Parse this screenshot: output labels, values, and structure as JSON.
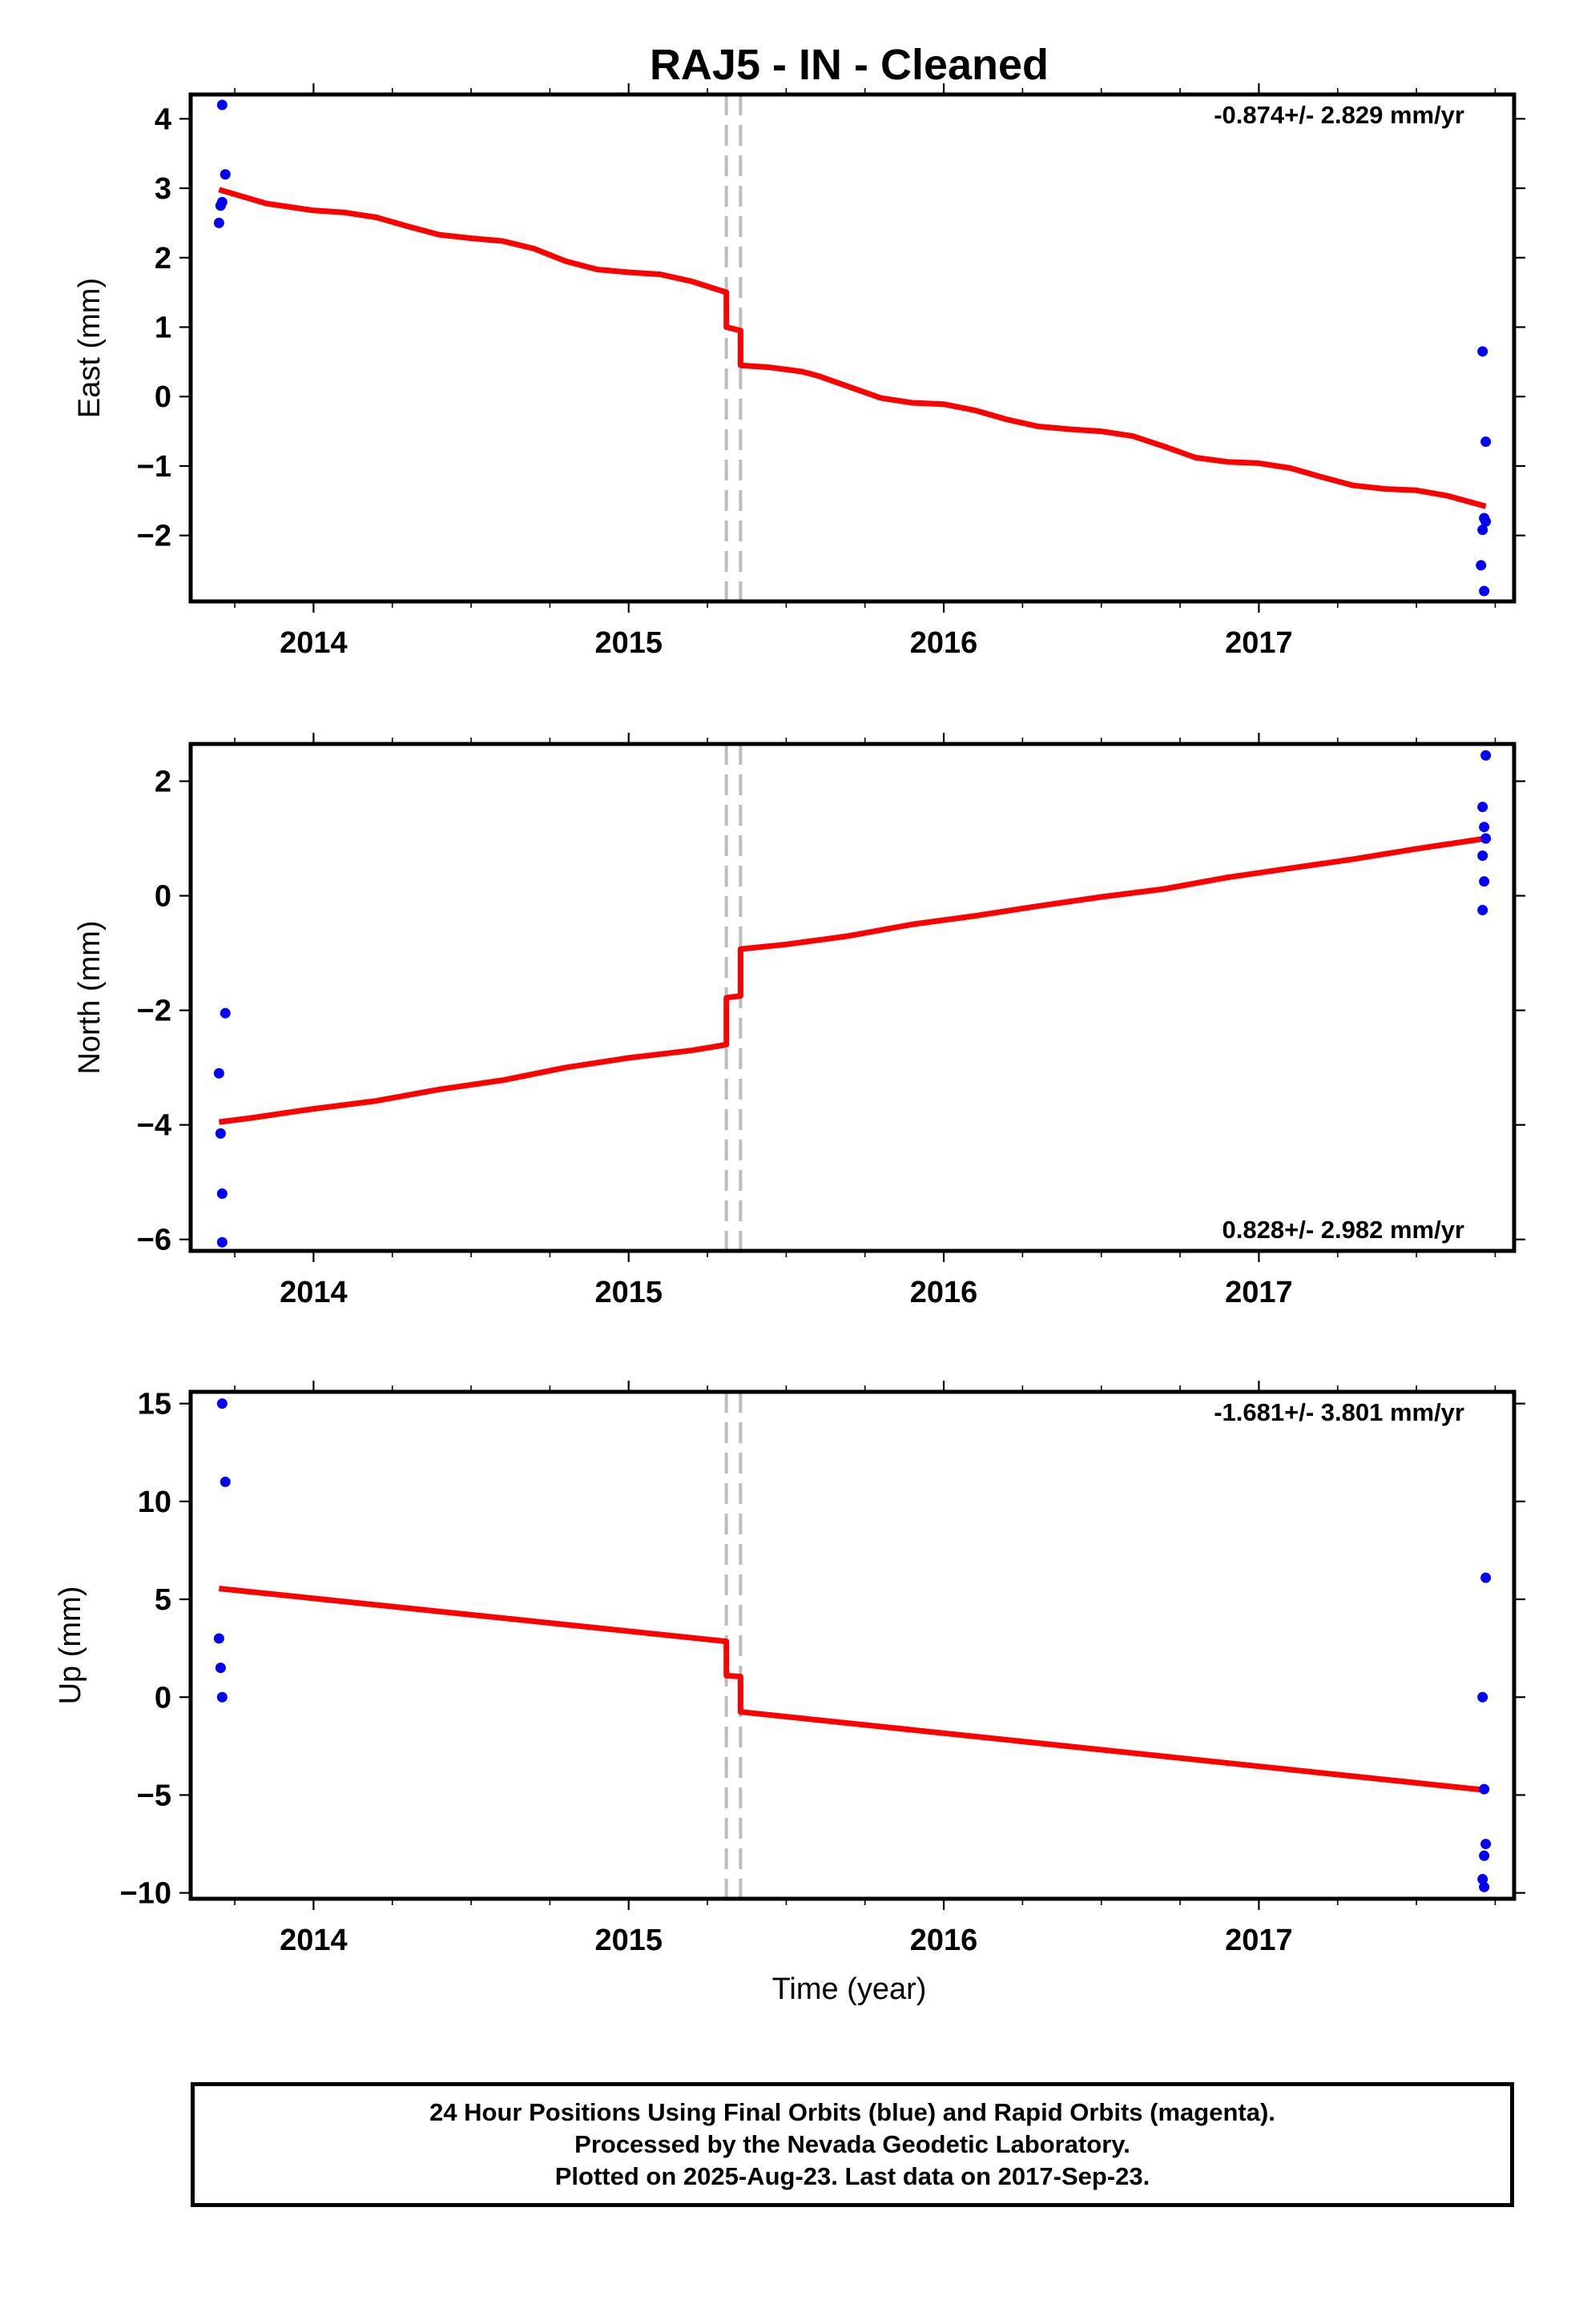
{
  "title": "RAJ5  - IN - Cleaned",
  "xlabel": "Time (year)",
  "footer": {
    "line1": "24 Hour Positions Using Final Orbits (blue) and Rapid Orbits (magenta).",
    "line2": "Processed by the Nevada Geodetic Laboratory.",
    "line3": "Plotted on 2025-Aug-23. Last data on 2017-Sep-23."
  },
  "colors": {
    "fit": "#ff0000",
    "final_orbits": "#0000ff",
    "break_lines": "#bdbdbd"
  },
  "chart_data": [
    {
      "type": "scatter",
      "name": "east",
      "ylabel": "East (mm)",
      "rate_text": "-0.874+/- 2.829 mm/yr",
      "rate_position": "top-right",
      "xlim": [
        2013.61,
        2017.81
      ],
      "ylim": [
        -2.95,
        4.35
      ],
      "yticks": [
        -2,
        -1,
        0,
        1,
        2,
        3,
        4
      ],
      "ytick_labels": [
        "−2",
        "−1",
        "0",
        "1",
        "2",
        "3",
        "4"
      ],
      "xticks": [
        2014,
        2015,
        2016,
        2017
      ],
      "xtick_labels": [
        "2014",
        "2015",
        "2016",
        "2017"
      ],
      "breaks": [
        2015.31,
        2015.355
      ],
      "points": [
        [
          2013.71,
          4.2
        ],
        [
          2013.72,
          3.2
        ],
        [
          2013.71,
          2.8
        ],
        [
          2013.705,
          2.75
        ],
        [
          2013.7,
          2.5
        ],
        [
          2017.71,
          0.65
        ],
        [
          2017.72,
          -0.65
        ],
        [
          2017.715,
          -1.75
        ],
        [
          2017.72,
          -1.8
        ],
        [
          2017.71,
          -1.92
        ],
        [
          2017.705,
          -2.43
        ],
        [
          2017.715,
          -2.8
        ]
      ],
      "fit": [
        [
          2013.7,
          2.98
        ],
        [
          2013.85,
          2.78
        ],
        [
          2014.0,
          2.68
        ],
        [
          2014.1,
          2.65
        ],
        [
          2014.2,
          2.58
        ],
        [
          2014.3,
          2.45
        ],
        [
          2014.4,
          2.33
        ],
        [
          2014.5,
          2.28
        ],
        [
          2014.6,
          2.24
        ],
        [
          2014.7,
          2.13
        ],
        [
          2014.8,
          1.95
        ],
        [
          2014.9,
          1.83
        ],
        [
          2015.0,
          1.79
        ],
        [
          2015.1,
          1.76
        ],
        [
          2015.2,
          1.66
        ],
        [
          2015.31,
          1.5
        ],
        [
          2015.31,
          1.0
        ],
        [
          2015.355,
          0.95
        ],
        [
          2015.355,
          0.45
        ],
        [
          2015.45,
          0.42
        ],
        [
          2015.55,
          0.36
        ],
        [
          2015.6,
          0.3
        ],
        [
          2015.7,
          0.14
        ],
        [
          2015.8,
          -0.02
        ],
        [
          2015.9,
          -0.09
        ],
        [
          2016.0,
          -0.11
        ],
        [
          2016.1,
          -0.2
        ],
        [
          2016.2,
          -0.33
        ],
        [
          2016.3,
          -0.43
        ],
        [
          2016.4,
          -0.47
        ],
        [
          2016.5,
          -0.5
        ],
        [
          2016.6,
          -0.57
        ],
        [
          2016.7,
          -0.72
        ],
        [
          2016.8,
          -0.88
        ],
        [
          2016.9,
          -0.94
        ],
        [
          2017.0,
          -0.96
        ],
        [
          2017.1,
          -1.03
        ],
        [
          2017.2,
          -1.16
        ],
        [
          2017.3,
          -1.28
        ],
        [
          2017.4,
          -1.33
        ],
        [
          2017.5,
          -1.35
        ],
        [
          2017.6,
          -1.43
        ],
        [
          2017.72,
          -1.58
        ]
      ]
    },
    {
      "type": "scatter",
      "name": "north",
      "ylabel": "North (mm)",
      "rate_text": "0.828+/- 2.982 mm/yr",
      "rate_position": "bottom-right",
      "xlim": [
        2013.61,
        2017.81
      ],
      "ylim": [
        -6.2,
        2.65
      ],
      "yticks": [
        -6,
        -4,
        -2,
        0,
        2
      ],
      "ytick_labels": [
        "−6",
        "−4",
        "−2",
        "0",
        "2"
      ],
      "xticks": [
        2014,
        2015,
        2016,
        2017
      ],
      "xtick_labels": [
        "2014",
        "2015",
        "2016",
        "2017"
      ],
      "breaks": [
        2015.31,
        2015.355
      ],
      "points": [
        [
          2013.72,
          -2.05
        ],
        [
          2013.7,
          -3.1
        ],
        [
          2013.705,
          -4.15
        ],
        [
          2013.71,
          -5.2
        ],
        [
          2013.71,
          -6.05
        ],
        [
          2017.72,
          2.45
        ],
        [
          2017.71,
          1.55
        ],
        [
          2017.715,
          1.2
        ],
        [
          2017.72,
          1.0
        ],
        [
          2017.71,
          0.7
        ],
        [
          2017.715,
          0.25
        ],
        [
          2017.71,
          -0.25
        ]
      ],
      "fit": [
        [
          2013.7,
          -3.95
        ],
        [
          2013.8,
          -3.88
        ],
        [
          2014.0,
          -3.72
        ],
        [
          2014.2,
          -3.58
        ],
        [
          2014.4,
          -3.38
        ],
        [
          2014.6,
          -3.22
        ],
        [
          2014.8,
          -3.0
        ],
        [
          2015.0,
          -2.83
        ],
        [
          2015.2,
          -2.7
        ],
        [
          2015.31,
          -2.6
        ],
        [
          2015.31,
          -1.78
        ],
        [
          2015.355,
          -1.75
        ],
        [
          2015.355,
          -0.93
        ],
        [
          2015.5,
          -0.85
        ],
        [
          2015.7,
          -0.7
        ],
        [
          2015.9,
          -0.5
        ],
        [
          2016.1,
          -0.35
        ],
        [
          2016.3,
          -0.18
        ],
        [
          2016.5,
          -0.02
        ],
        [
          2016.7,
          0.12
        ],
        [
          2016.9,
          0.32
        ],
        [
          2017.1,
          0.48
        ],
        [
          2017.3,
          0.64
        ],
        [
          2017.5,
          0.82
        ],
        [
          2017.72,
          1.0
        ]
      ]
    },
    {
      "type": "scatter",
      "name": "up",
      "ylabel": "Up (mm)",
      "rate_text": "-1.681+/- 3.801 mm/yr",
      "rate_position": "top-right",
      "xlim": [
        2013.61,
        2017.81
      ],
      "ylim": [
        -10.3,
        15.6
      ],
      "yticks": [
        -10,
        -5,
        0,
        5,
        10,
        15
      ],
      "ytick_labels": [
        "−10",
        "−5",
        "0",
        "5",
        "10",
        "15"
      ],
      "xticks": [
        2014,
        2015,
        2016,
        2017
      ],
      "xtick_labels": [
        "2014",
        "2015",
        "2016",
        "2017"
      ],
      "breaks": [
        2015.31,
        2015.355
      ],
      "points": [
        [
          2013.71,
          15.0
        ],
        [
          2013.72,
          11.0
        ],
        [
          2013.7,
          3.0
        ],
        [
          2013.705,
          1.5
        ],
        [
          2013.71,
          0.0
        ],
        [
          2017.72,
          6.1
        ],
        [
          2017.71,
          0.0
        ],
        [
          2017.715,
          -4.7
        ],
        [
          2017.72,
          -7.5
        ],
        [
          2017.715,
          -8.1
        ],
        [
          2017.71,
          -9.3
        ],
        [
          2017.715,
          -9.7
        ]
      ],
      "fit": [
        [
          2013.7,
          5.55
        ],
        [
          2015.31,
          2.85
        ],
        [
          2015.31,
          1.1
        ],
        [
          2015.355,
          1.05
        ],
        [
          2015.355,
          -0.75
        ],
        [
          2017.72,
          -4.75
        ]
      ]
    }
  ]
}
